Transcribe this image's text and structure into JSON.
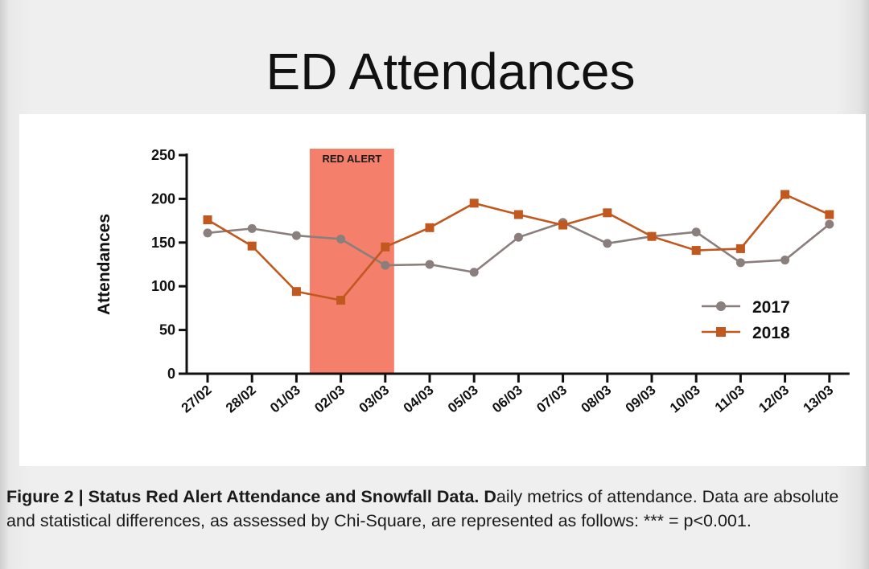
{
  "page_title": "ED Attendances",
  "chart_data": {
    "type": "line",
    "title": "",
    "xlabel": "",
    "ylabel": "Attendances",
    "ylim": [
      0,
      250
    ],
    "yticks": [
      0,
      50,
      100,
      150,
      200,
      250
    ],
    "categories": [
      "27/02",
      "28/02",
      "01/03",
      "02/03",
      "03/03",
      "04/03",
      "05/03",
      "06/03",
      "07/03",
      "08/03",
      "09/03",
      "10/03",
      "11/03",
      "12/03",
      "13/03"
    ],
    "series": [
      {
        "name": "2017",
        "marker": "circle",
        "color": "#8a7f7c",
        "values": [
          161,
          166,
          158,
          154,
          124,
          125,
          116,
          156,
          173,
          149,
          157,
          162,
          127,
          130,
          171
        ]
      },
      {
        "name": "2018",
        "marker": "square",
        "color": "#c0581f",
        "values": [
          176,
          146,
          94,
          84,
          145,
          167,
          195,
          182,
          170,
          184,
          157,
          141,
          143,
          205,
          182
        ]
      }
    ],
    "annotation": {
      "label": "RED ALERT",
      "from_category": "02/03",
      "to_category": "03/03",
      "color": "#f4806b"
    },
    "legend_position": "bottom-right",
    "grid": false
  },
  "caption": {
    "bold_lead": "Figure 2 | Status Red Alert Attendance and Snowfall Data. D",
    "rest": "aily metrics of attendance. Data are absolute and statistical differences, as assessed by Chi-Square, are represented as follows: *** = p<0.001."
  }
}
